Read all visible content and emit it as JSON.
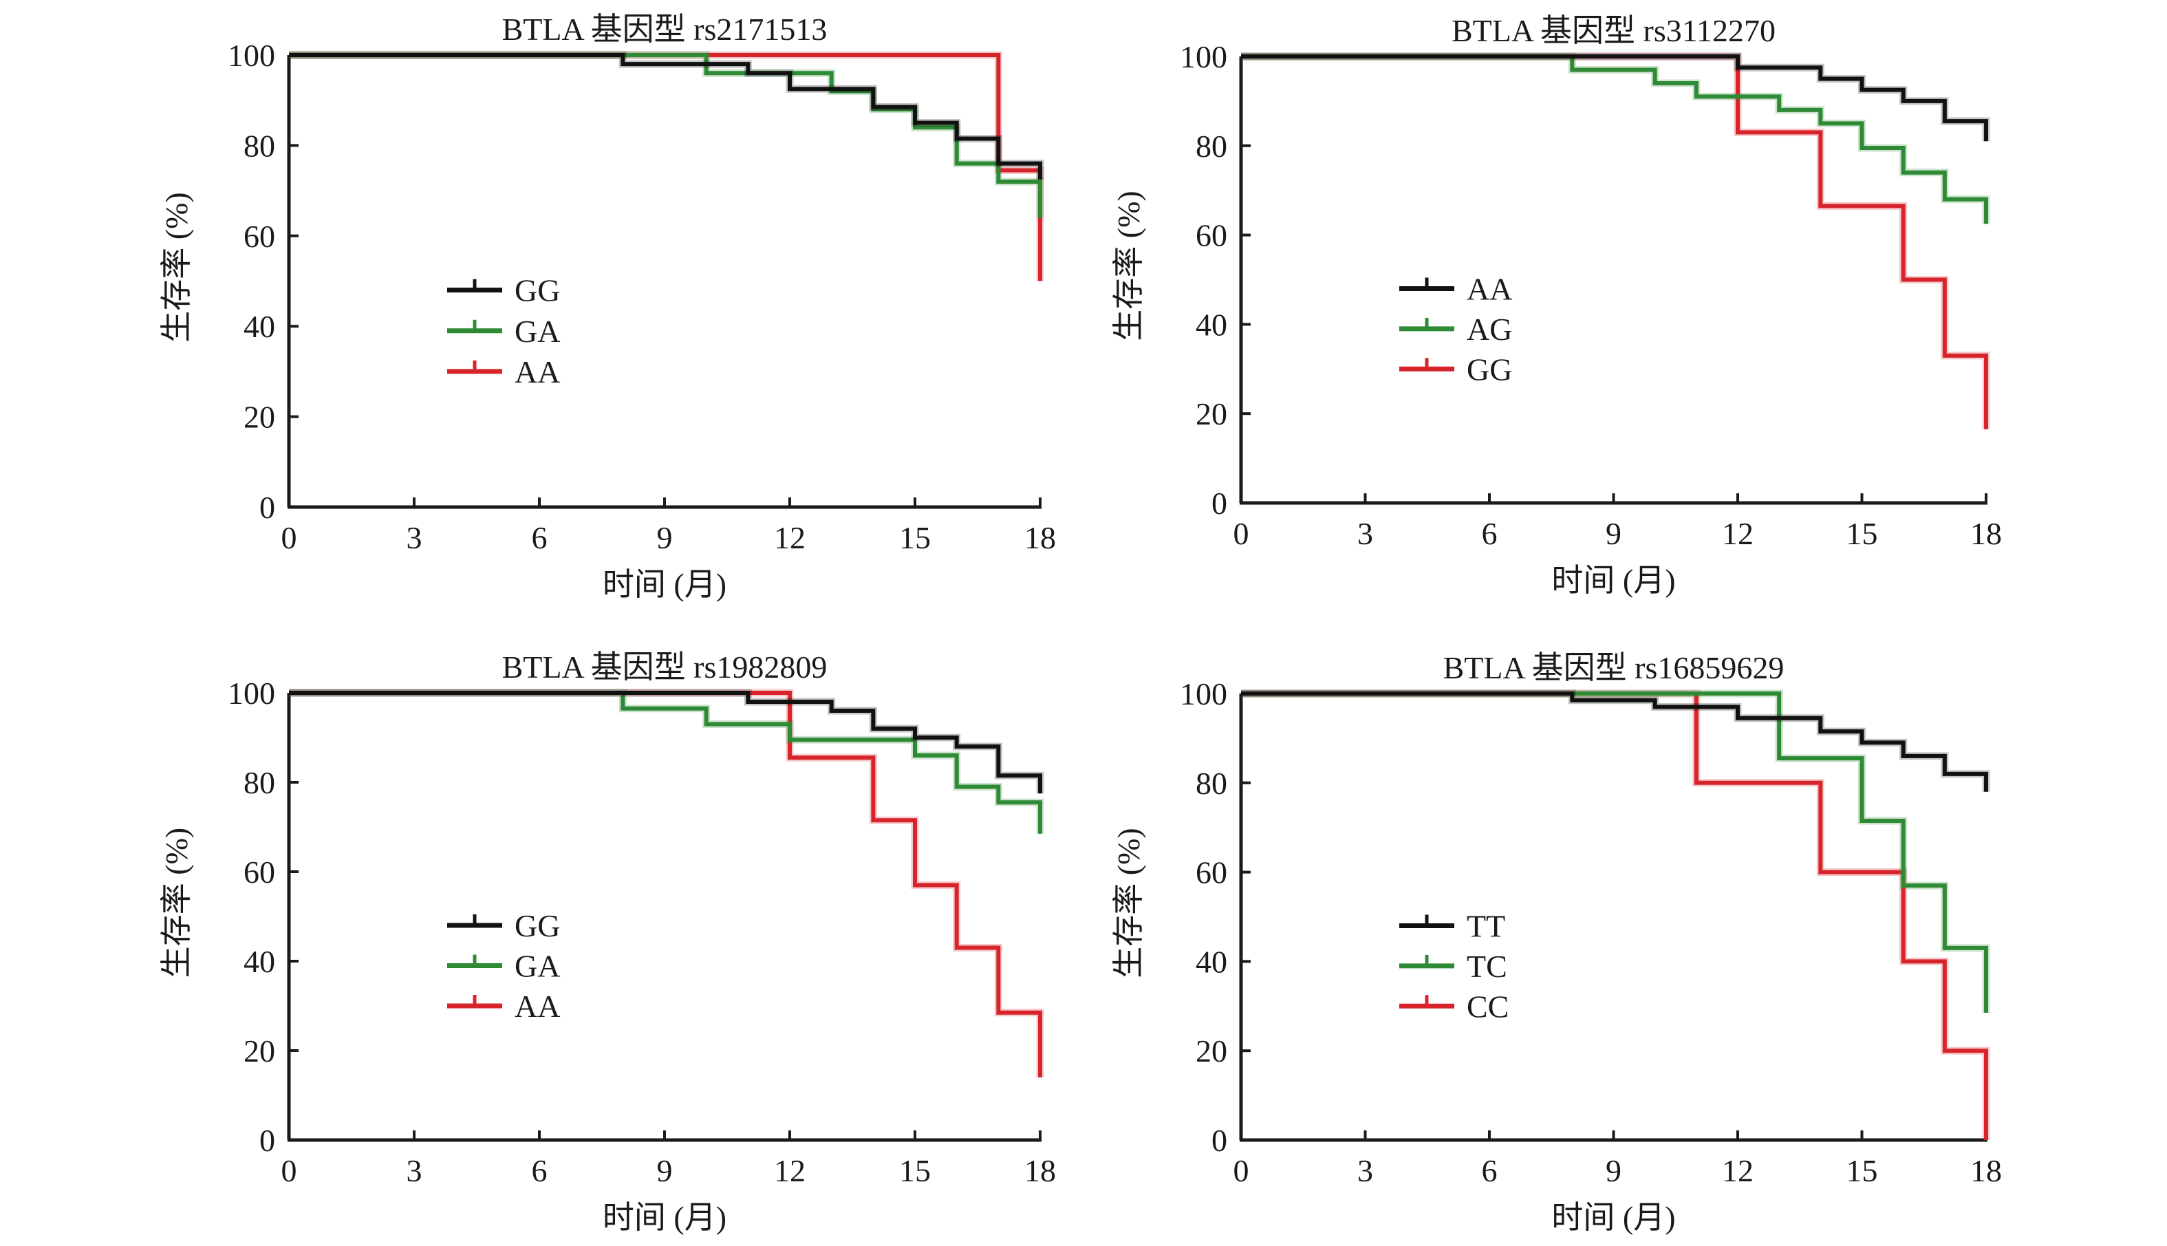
{
  "figure": {
    "description": "Kaplan-Meier survival curves by BTLA genotype"
  },
  "chart_data": [
    {
      "type": "line",
      "subtype": "kaplan-meier-step",
      "title": "BTLA 基因型 rs2171513",
      "xlabel": "时间 (月)",
      "ylabel": "生存率 (%)",
      "xlim": [
        0,
        18
      ],
      "ylim": [
        0,
        100
      ],
      "xticks": [
        0,
        3,
        6,
        9,
        12,
        15,
        18
      ],
      "yticks": [
        0,
        20,
        40,
        60,
        80,
        100
      ],
      "grid": false,
      "legend_position": "center-left",
      "series": [
        {
          "name": "GG",
          "color": "#111111",
          "steps": [
            [
              0,
              100
            ],
            [
              8,
              98
            ],
            [
              11,
              96
            ],
            [
              12,
              92.5
            ],
            [
              14,
              88.5
            ],
            [
              15,
              85
            ],
            [
              16,
              81.5
            ],
            [
              17,
              76
            ],
            [
              18,
              72.5
            ]
          ]
        },
        {
          "name": "GA",
          "color": "#2e8a34",
          "steps": [
            [
              0,
              100
            ],
            [
              10,
              96
            ],
            [
              13,
              92
            ],
            [
              14,
              88
            ],
            [
              15,
              84
            ],
            [
              16,
              76
            ],
            [
              17,
              72
            ],
            [
              18,
              64
            ]
          ]
        },
        {
          "name": "AA",
          "color": "#d7242b",
          "steps": [
            [
              0,
              100
            ],
            [
              17,
              74.5
            ],
            [
              18,
              50
            ]
          ]
        }
      ]
    },
    {
      "type": "line",
      "subtype": "kaplan-meier-step",
      "title": "BTLA 基因型 rs3112270",
      "xlabel": "时间 (月)",
      "ylabel": "生存率 (%)",
      "xlim": [
        0,
        18
      ],
      "ylim": [
        0,
        100
      ],
      "xticks": [
        0,
        3,
        6,
        9,
        12,
        15,
        18
      ],
      "yticks": [
        0,
        20,
        40,
        60,
        80,
        100
      ],
      "grid": false,
      "legend_position": "center-left",
      "series": [
        {
          "name": "AA",
          "color": "#111111",
          "steps": [
            [
              0,
              100
            ],
            [
              12,
              97.5
            ],
            [
              14,
              95
            ],
            [
              15,
              92.5
            ],
            [
              16,
              90
            ],
            [
              17,
              85.5
            ],
            [
              18,
              81
            ]
          ]
        },
        {
          "name": "AG",
          "color": "#2e8a34",
          "steps": [
            [
              0,
              100
            ],
            [
              8,
              97
            ],
            [
              10,
              94
            ],
            [
              11,
              91
            ],
            [
              13,
              88
            ],
            [
              14,
              85
            ],
            [
              15,
              79.5
            ],
            [
              16,
              74
            ],
            [
              17,
              68
            ],
            [
              18,
              62.5
            ]
          ]
        },
        {
          "name": "GG",
          "color": "#d7242b",
          "steps": [
            [
              0,
              100
            ],
            [
              12,
              83
            ],
            [
              14,
              66.5
            ],
            [
              16,
              50
            ],
            [
              17,
              33
            ],
            [
              18,
              16.5
            ]
          ]
        }
      ]
    },
    {
      "type": "line",
      "subtype": "kaplan-meier-step",
      "title": "BTLA 基因型 rs1982809",
      "xlabel": "时间 (月)",
      "ylabel": "生存率 (%)",
      "xlim": [
        0,
        18
      ],
      "ylim": [
        0,
        100
      ],
      "xticks": [
        0,
        3,
        6,
        9,
        12,
        15,
        18
      ],
      "yticks": [
        0,
        20,
        40,
        60,
        80,
        100
      ],
      "grid": false,
      "legend_position": "center-left",
      "series": [
        {
          "name": "GG",
          "color": "#111111",
          "steps": [
            [
              0,
              100
            ],
            [
              11,
              98
            ],
            [
              13,
              96
            ],
            [
              14,
              92
            ],
            [
              15,
              90
            ],
            [
              16,
              88
            ],
            [
              17,
              81.5
            ],
            [
              18,
              77.5
            ]
          ]
        },
        {
          "name": "GA",
          "color": "#2e8a34",
          "steps": [
            [
              0,
              100
            ],
            [
              8,
              96.5
            ],
            [
              10,
              93
            ],
            [
              12,
              89.5
            ],
            [
              15,
              86
            ],
            [
              16,
              79
            ],
            [
              17,
              75.5
            ],
            [
              18,
              68.5
            ]
          ]
        },
        {
          "name": "AA",
          "color": "#d7242b",
          "steps": [
            [
              0,
              100
            ],
            [
              12,
              85.5
            ],
            [
              14,
              71.5
            ],
            [
              15,
              57
            ],
            [
              16,
              43
            ],
            [
              17,
              28.5
            ],
            [
              18,
              14
            ]
          ]
        }
      ]
    },
    {
      "type": "line",
      "subtype": "kaplan-meier-step",
      "title": "BTLA 基因型 rs16859629",
      "xlabel": "时间 (月)",
      "ylabel": "生存率 (%)",
      "xlim": [
        0,
        18
      ],
      "ylim": [
        0,
        100
      ],
      "xticks": [
        0,
        3,
        6,
        9,
        12,
        15,
        18
      ],
      "yticks": [
        0,
        20,
        40,
        60,
        80,
        100
      ],
      "grid": false,
      "legend_position": "center-left",
      "series": [
        {
          "name": "TT",
          "color": "#111111",
          "steps": [
            [
              0,
              100
            ],
            [
              8,
              98.5
            ],
            [
              10,
              97
            ],
            [
              12,
              94.5
            ],
            [
              14,
              91.5
            ],
            [
              15,
              89
            ],
            [
              16,
              86
            ],
            [
              17,
              82
            ],
            [
              18,
              78
            ]
          ]
        },
        {
          "name": "TC",
          "color": "#2e8a34",
          "steps": [
            [
              0,
              100
            ],
            [
              13,
              85.5
            ],
            [
              15,
              71.5
            ],
            [
              16,
              57
            ],
            [
              17,
              43
            ],
            [
              18,
              28.5
            ]
          ]
        },
        {
          "name": "CC",
          "color": "#d7242b",
          "steps": [
            [
              0,
              100
            ],
            [
              11,
              80
            ],
            [
              14,
              60
            ],
            [
              16,
              40
            ],
            [
              17,
              20
            ],
            [
              18,
              0
            ]
          ]
        }
      ]
    }
  ]
}
